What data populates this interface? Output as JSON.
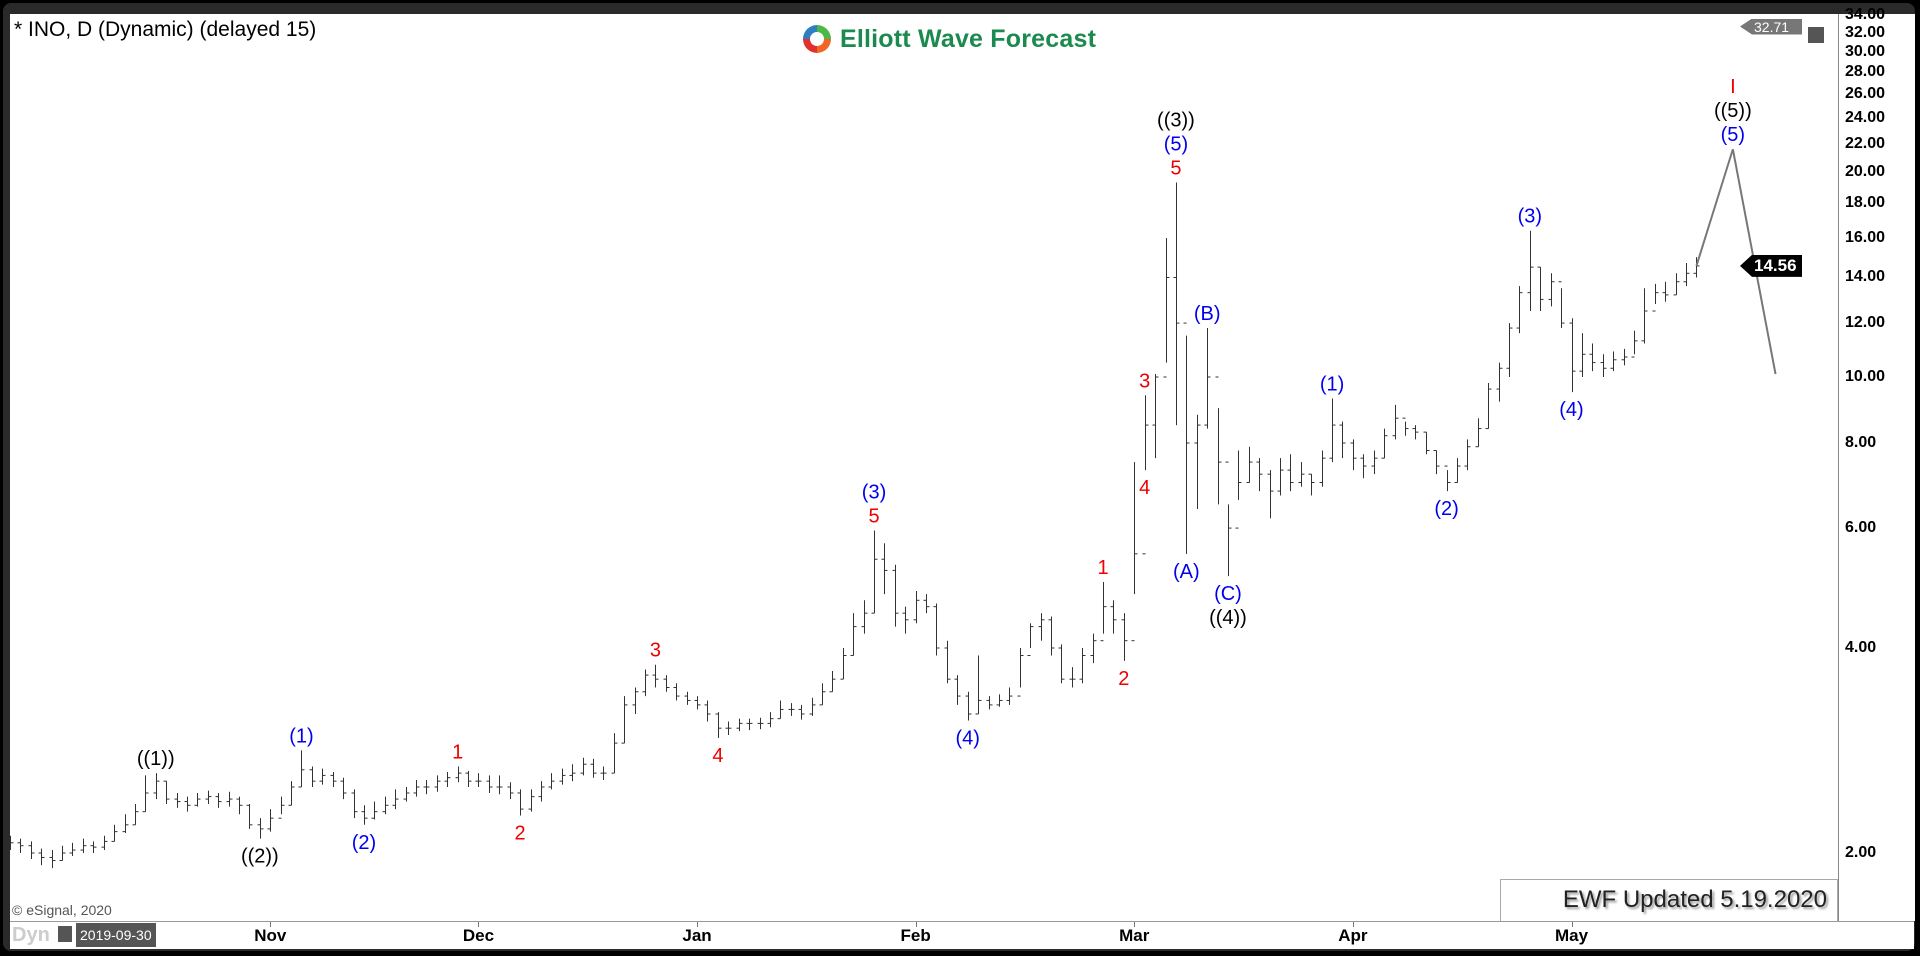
{
  "header": {
    "title": "* INO, D (Dynamic) (delayed 15)",
    "logo_text": "Elliott Wave Forecast"
  },
  "footer": {
    "copyright": "© eSignal, 2020",
    "updated": "EWF Updated 5.19.2020",
    "dyn_label": "Dyn",
    "start_date": "2019-09-30"
  },
  "price_markers": [
    {
      "value": "14.56",
      "bg": "#000000",
      "fg": "#ffffff"
    },
    {
      "value": "32.71",
      "bg": "#777777",
      "fg": "#ffffff"
    }
  ],
  "colors": {
    "bars": "#333333",
    "projection": "#777777",
    "blue": "#0000ee",
    "red": "#ee0000",
    "black": "#000000"
  },
  "chart_data": {
    "type": "ohlc",
    "scale": "log",
    "ylim": [
      1.59,
      34
    ],
    "y_ticks": [
      "2.00",
      "4.00",
      "6.00",
      "8.00",
      "10.00",
      "12.00",
      "14.00",
      "16.00",
      "18.00",
      "20.00",
      "22.00",
      "24.00",
      "26.00",
      "28.00",
      "30.00",
      "32.00",
      "34.00"
    ],
    "months": [
      {
        "label": "Nov",
        "bar": 25
      },
      {
        "label": "Dec",
        "bar": 45
      },
      {
        "label": "Jan",
        "bar": 66
      },
      {
        "label": "Feb",
        "bar": 87
      },
      {
        "label": "Mar",
        "bar": 108
      },
      {
        "label": "Apr",
        "bar": 129
      },
      {
        "label": "May",
        "bar": 150
      }
    ],
    "bars_hlc": [
      [
        2.12,
        2.02,
        2.07
      ],
      [
        2.1,
        2.0,
        2.05
      ],
      [
        2.08,
        1.96,
        2.0
      ],
      [
        2.03,
        1.92,
        1.97
      ],
      [
        2.02,
        1.9,
        1.95
      ],
      [
        2.05,
        1.95,
        2.0
      ],
      [
        2.07,
        1.98,
        2.02
      ],
      [
        2.1,
        2.0,
        2.05
      ],
      [
        2.08,
        2.0,
        2.04
      ],
      [
        2.12,
        2.02,
        2.08
      ],
      [
        2.2,
        2.08,
        2.15
      ],
      [
        2.28,
        2.14,
        2.2
      ],
      [
        2.36,
        2.2,
        2.3
      ],
      [
        2.6,
        2.3,
        2.45
      ],
      [
        2.62,
        2.4,
        2.55
      ],
      [
        2.55,
        2.36,
        2.4
      ],
      [
        2.45,
        2.33,
        2.38
      ],
      [
        2.42,
        2.3,
        2.35
      ],
      [
        2.45,
        2.34,
        2.4
      ],
      [
        2.47,
        2.36,
        2.42
      ],
      [
        2.45,
        2.33,
        2.38
      ],
      [
        2.46,
        2.34,
        2.4
      ],
      [
        2.42,
        2.28,
        2.35
      ],
      [
        2.36,
        2.17,
        2.2
      ],
      [
        2.25,
        2.1,
        2.17
      ],
      [
        2.32,
        2.15,
        2.25
      ],
      [
        2.42,
        2.28,
        2.35
      ],
      [
        2.55,
        2.35,
        2.5
      ],
      [
        2.83,
        2.5,
        2.65
      ],
      [
        2.68,
        2.5,
        2.55
      ],
      [
        2.66,
        2.52,
        2.6
      ],
      [
        2.63,
        2.5,
        2.55
      ],
      [
        2.58,
        2.4,
        2.45
      ],
      [
        2.48,
        2.25,
        2.3
      ],
      [
        2.35,
        2.2,
        2.25
      ],
      [
        2.38,
        2.24,
        2.3
      ],
      [
        2.42,
        2.28,
        2.35
      ],
      [
        2.48,
        2.32,
        2.4
      ],
      [
        2.5,
        2.38,
        2.45
      ],
      [
        2.56,
        2.42,
        2.5
      ],
      [
        2.56,
        2.44,
        2.5
      ],
      [
        2.6,
        2.46,
        2.55
      ],
      [
        2.63,
        2.5,
        2.58
      ],
      [
        2.68,
        2.54,
        2.62
      ],
      [
        2.64,
        2.5,
        2.55
      ],
      [
        2.62,
        2.5,
        2.55
      ],
      [
        2.6,
        2.45,
        2.5
      ],
      [
        2.6,
        2.44,
        2.5
      ],
      [
        2.54,
        2.4,
        2.45
      ],
      [
        2.48,
        2.27,
        2.32
      ],
      [
        2.48,
        2.3,
        2.42
      ],
      [
        2.55,
        2.38,
        2.5
      ],
      [
        2.62,
        2.48,
        2.55
      ],
      [
        2.66,
        2.52,
        2.6
      ],
      [
        2.7,
        2.55,
        2.62
      ],
      [
        2.76,
        2.6,
        2.7
      ],
      [
        2.75,
        2.58,
        2.62
      ],
      [
        2.68,
        2.56,
        2.62
      ],
      [
        3.0,
        2.62,
        2.9
      ],
      [
        3.4,
        2.9,
        3.3
      ],
      [
        3.5,
        3.2,
        3.45
      ],
      [
        3.72,
        3.4,
        3.65
      ],
      [
        3.78,
        3.5,
        3.6
      ],
      [
        3.65,
        3.45,
        3.5
      ],
      [
        3.55,
        3.35,
        3.4
      ],
      [
        3.45,
        3.3,
        3.35
      ],
      [
        3.4,
        3.25,
        3.3
      ],
      [
        3.35,
        3.12,
        3.2
      ],
      [
        3.22,
        2.95,
        3.05
      ],
      [
        3.12,
        2.98,
        3.05
      ],
      [
        3.15,
        3.02,
        3.1
      ],
      [
        3.15,
        3.03,
        3.1
      ],
      [
        3.16,
        3.04,
        3.1
      ],
      [
        3.22,
        3.06,
        3.15
      ],
      [
        3.35,
        3.15,
        3.25
      ],
      [
        3.32,
        3.18,
        3.25
      ],
      [
        3.3,
        3.14,
        3.2
      ],
      [
        3.38,
        3.18,
        3.3
      ],
      [
        3.55,
        3.3,
        3.45
      ],
      [
        3.7,
        3.45,
        3.6
      ],
      [
        4.0,
        3.6,
        3.9
      ],
      [
        4.5,
        3.9,
        4.3
      ],
      [
        4.7,
        4.2,
        4.5
      ],
      [
        5.95,
        4.5,
        5.4
      ],
      [
        5.7,
        4.8,
        5.2
      ],
      [
        5.3,
        4.3,
        4.5
      ],
      [
        4.6,
        4.2,
        4.4
      ],
      [
        4.85,
        4.35,
        4.7
      ],
      [
        4.8,
        4.5,
        4.6
      ],
      [
        4.65,
        3.9,
        4.0
      ],
      [
        4.1,
        3.55,
        3.6
      ],
      [
        3.65,
        3.3,
        3.4
      ],
      [
        3.45,
        3.13,
        3.2
      ],
      [
        3.9,
        3.2,
        3.35
      ],
      [
        3.4,
        3.25,
        3.3
      ],
      [
        3.42,
        3.28,
        3.35
      ],
      [
        3.5,
        3.3,
        3.4
      ],
      [
        4.0,
        3.5,
        3.9
      ],
      [
        4.35,
        4.0,
        4.3
      ],
      [
        4.5,
        4.1,
        4.4
      ],
      [
        4.45,
        3.9,
        4.0
      ],
      [
        4.05,
        3.55,
        3.6
      ],
      [
        3.75,
        3.5,
        3.6
      ],
      [
        4.0,
        3.55,
        3.9
      ],
      [
        4.2,
        3.8,
        4.1
      ],
      [
        5.0,
        4.2,
        4.6
      ],
      [
        4.7,
        4.2,
        4.4
      ],
      [
        4.5,
        3.83,
        4.1
      ],
      [
        7.5,
        4.8,
        5.5
      ],
      [
        9.4,
        7.3,
        8.5
      ],
      [
        10.1,
        7.6,
        10.0
      ],
      [
        16.0,
        10.5,
        14.0
      ],
      [
        19.3,
        8.5,
        12.0
      ],
      [
        11.5,
        5.5,
        8.0
      ],
      [
        8.8,
        6.4,
        8.5
      ],
      [
        11.8,
        8.4,
        10.0
      ],
      [
        9.0,
        6.5,
        7.5
      ],
      [
        6.5,
        5.1,
        6.0
      ],
      [
        7.8,
        6.6,
        7.0
      ],
      [
        7.9,
        7.0,
        7.5
      ],
      [
        7.6,
        6.8,
        7.2
      ],
      [
        7.3,
        6.2,
        6.8
      ],
      [
        7.6,
        6.7,
        7.3
      ],
      [
        7.7,
        6.8,
        7.0
      ],
      [
        7.5,
        6.9,
        7.2
      ],
      [
        7.2,
        6.7,
        7.0
      ],
      [
        7.8,
        6.9,
        7.6
      ],
      [
        9.3,
        7.5,
        8.5
      ],
      [
        8.6,
        7.6,
        8.0
      ],
      [
        8.1,
        7.3,
        7.6
      ],
      [
        7.7,
        7.1,
        7.4
      ],
      [
        7.8,
        7.2,
        7.6
      ],
      [
        8.4,
        7.6,
        8.2
      ],
      [
        9.1,
        8.1,
        8.7
      ],
      [
        8.6,
        8.2,
        8.4
      ],
      [
        8.5,
        8.1,
        8.3
      ],
      [
        8.3,
        7.7,
        7.8
      ],
      [
        7.8,
        7.2,
        7.4
      ],
      [
        7.3,
        6.8,
        7.0
      ],
      [
        7.6,
        7.0,
        7.4
      ],
      [
        8.1,
        7.3,
        7.9
      ],
      [
        8.7,
        7.9,
        8.4
      ],
      [
        9.8,
        8.4,
        9.6
      ],
      [
        10.5,
        9.2,
        10.3
      ],
      [
        12.0,
        10.0,
        11.8
      ],
      [
        13.6,
        11.6,
        13.3
      ],
      [
        16.4,
        12.5,
        14.5
      ],
      [
        14.5,
        12.5,
        13.0
      ],
      [
        14.2,
        12.7,
        13.8
      ],
      [
        13.5,
        11.8,
        12.0
      ],
      [
        12.2,
        9.5,
        10.2
      ],
      [
        11.6,
        10.0,
        10.8
      ],
      [
        11.2,
        10.2,
        10.5
      ],
      [
        10.8,
        10.0,
        10.3
      ],
      [
        10.9,
        10.2,
        10.6
      ],
      [
        11.0,
        10.4,
        10.7
      ],
      [
        11.7,
        10.8,
        11.3
      ],
      [
        13.5,
        11.2,
        12.5
      ],
      [
        13.7,
        12.8,
        13.3
      ],
      [
        13.8,
        12.9,
        13.2
      ],
      [
        14.2,
        13.2,
        13.8
      ],
      [
        14.7,
        13.6,
        14.2
      ],
      [
        15.0,
        14.0,
        14.56
      ]
    ],
    "projection": [
      {
        "bar": 162,
        "price": 14.56
      },
      {
        "bar": 165.5,
        "price": 21.6
      },
      {
        "bar": 169.6,
        "price": 10.1
      }
    ],
    "wave_labels": [
      {
        "bar": 14,
        "pos": "above",
        "stack": [
          {
            "text": "((1))",
            "color": "black"
          }
        ]
      },
      {
        "bar": 24,
        "pos": "below",
        "stack": [
          {
            "text": "((2))",
            "color": "black"
          }
        ]
      },
      {
        "bar": 28,
        "pos": "above",
        "stack": [
          {
            "text": "(1)",
            "color": "blue"
          }
        ]
      },
      {
        "bar": 34,
        "pos": "below",
        "stack": [
          {
            "text": "(2)",
            "color": "blue"
          }
        ]
      },
      {
        "bar": 43,
        "pos": "above",
        "stack": [
          {
            "text": "1",
            "color": "red"
          }
        ]
      },
      {
        "bar": 49,
        "pos": "below",
        "stack": [
          {
            "text": "2",
            "color": "red"
          }
        ]
      },
      {
        "bar": 62,
        "pos": "above",
        "stack": [
          {
            "text": "3",
            "color": "red"
          }
        ]
      },
      {
        "bar": 68,
        "pos": "below",
        "stack": [
          {
            "text": "4",
            "color": "red"
          }
        ]
      },
      {
        "bar": 83,
        "pos": "above",
        "stack": [
          {
            "text": "5",
            "color": "red"
          },
          {
            "text": "(3)",
            "color": "blue"
          }
        ]
      },
      {
        "bar": 92,
        "pos": "below",
        "stack": [
          {
            "text": "(4)",
            "color": "blue"
          }
        ]
      },
      {
        "bar": 105,
        "pos": "above",
        "stack": [
          {
            "text": "1",
            "color": "red"
          }
        ]
      },
      {
        "bar": 107,
        "pos": "below",
        "stack": [
          {
            "text": "2",
            "color": "red"
          }
        ]
      },
      {
        "bar": 109,
        "pos": "above",
        "stack": [
          {
            "text": "3",
            "color": "red"
          }
        ]
      },
      {
        "bar": 109,
        "pos": "below",
        "stack": [
          {
            "text": "4",
            "color": "red"
          }
        ]
      },
      {
        "bar": 112,
        "pos": "above",
        "stack": [
          {
            "text": "5",
            "color": "red"
          },
          {
            "text": "(5)",
            "color": "blue"
          },
          {
            "text": "((3))",
            "color": "black"
          }
        ]
      },
      {
        "bar": 113,
        "pos": "below",
        "stack": [
          {
            "text": "(A)",
            "color": "blue"
          }
        ]
      },
      {
        "bar": 115,
        "pos": "above",
        "stack": [
          {
            "text": "(B)",
            "color": "blue"
          }
        ]
      },
      {
        "bar": 117,
        "pos": "below",
        "stack": [
          {
            "text": "(C)",
            "color": "blue"
          },
          {
            "text": "((4))",
            "color": "black"
          }
        ]
      },
      {
        "bar": 127,
        "pos": "above",
        "stack": [
          {
            "text": "(1)",
            "color": "blue"
          }
        ]
      },
      {
        "bar": 138,
        "pos": "below",
        "stack": [
          {
            "text": "(2)",
            "color": "blue"
          }
        ]
      },
      {
        "bar": 146,
        "pos": "above",
        "stack": [
          {
            "text": "(3)",
            "color": "blue"
          }
        ]
      },
      {
        "bar": 150,
        "pos": "below",
        "stack": [
          {
            "text": "(4)",
            "color": "blue"
          }
        ]
      },
      {
        "bar": 165.5,
        "price": 21.6,
        "pos": "above",
        "stack": [
          {
            "text": "(5)",
            "color": "blue"
          },
          {
            "text": "((5))",
            "color": "black"
          },
          {
            "text": "I",
            "color": "red"
          }
        ]
      }
    ]
  }
}
